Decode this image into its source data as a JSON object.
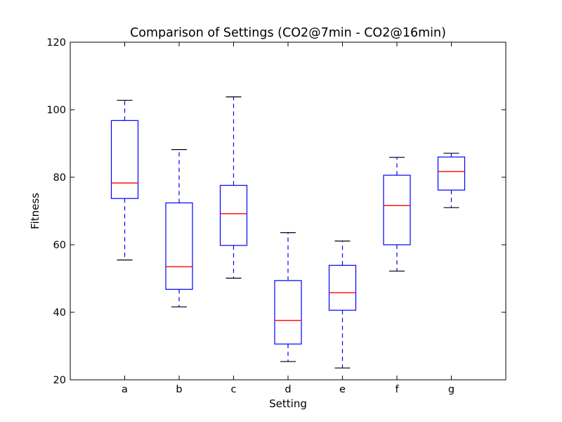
{
  "chart_data": {
    "type": "box",
    "title": "Comparison of Settings (CO2@7min - CO2@16min)",
    "xlabel": "Setting",
    "ylabel": "Fitness",
    "ylim": [
      20,
      120
    ],
    "yticks": [
      20,
      40,
      60,
      80,
      100,
      120
    ],
    "grid": false,
    "categories": [
      "a",
      "b",
      "c",
      "d",
      "e",
      "f",
      "g"
    ],
    "boxes": [
      {
        "category": "a",
        "whisker_low": 55.5,
        "q1": 73.7,
        "median": 78.3,
        "q3": 96.8,
        "whisker_high": 102.8
      },
      {
        "category": "b",
        "whisker_low": 41.6,
        "q1": 46.8,
        "median": 53.5,
        "q3": 72.4,
        "whisker_high": 88.2
      },
      {
        "category": "c",
        "whisker_low": 50.1,
        "q1": 59.8,
        "median": 69.2,
        "q3": 77.6,
        "whisker_high": 103.8
      },
      {
        "category": "d",
        "whisker_low": 25.4,
        "q1": 30.6,
        "median": 37.6,
        "q3": 49.4,
        "whisker_high": 63.6
      },
      {
        "category": "e",
        "whisker_low": 23.5,
        "q1": 40.6,
        "median": 45.8,
        "q3": 53.9,
        "whisker_high": 61.1
      },
      {
        "category": "f",
        "whisker_low": 52.2,
        "q1": 60.0,
        "median": 71.6,
        "q3": 80.6,
        "whisker_high": 85.9
      },
      {
        "category": "g",
        "whisker_low": 71.0,
        "q1": 76.2,
        "median": 81.7,
        "q3": 86.0,
        "whisker_high": 87.1
      }
    ],
    "colors": {
      "box": "#0000ff",
      "median": "#ff0000",
      "whisker": "#0000ff",
      "cap": "#000000"
    }
  }
}
